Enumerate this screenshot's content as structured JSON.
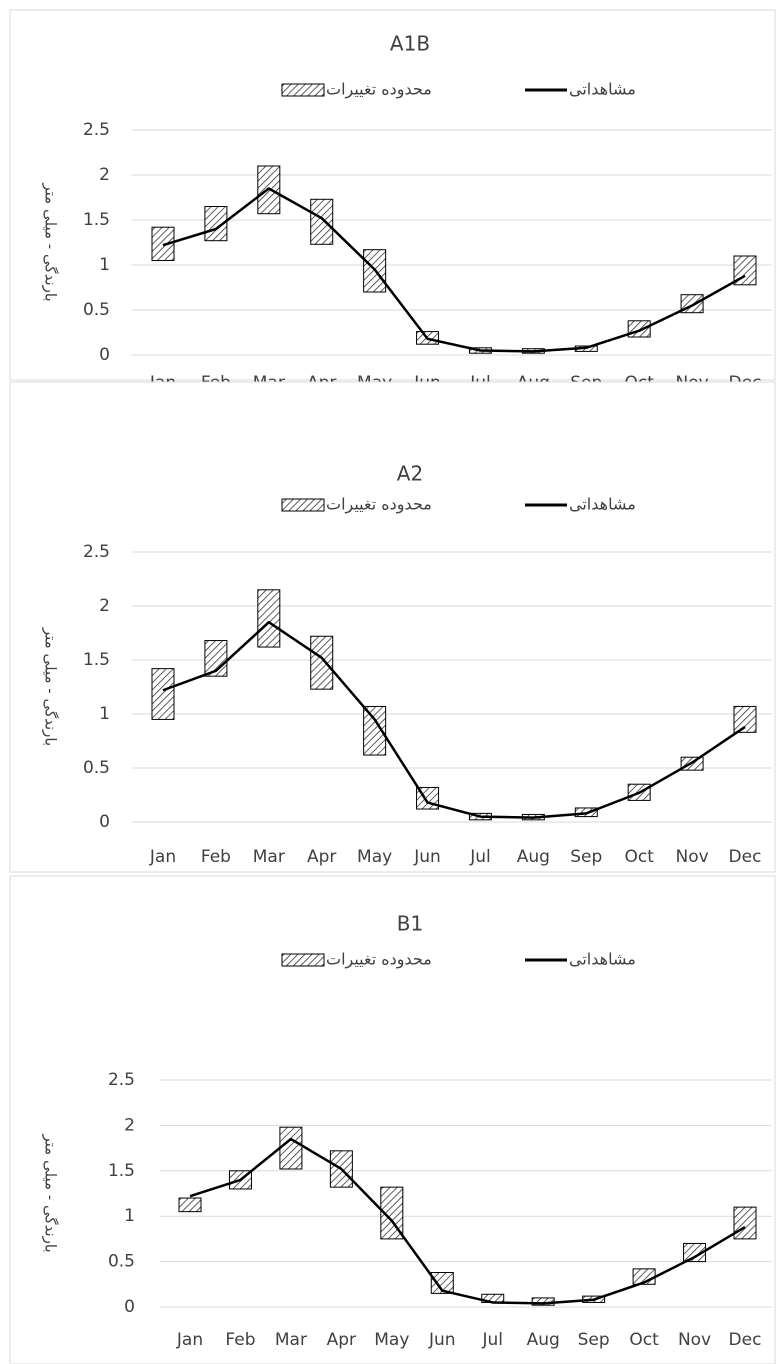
{
  "chart_data": [
    {
      "type": "range-line",
      "title": "A1B",
      "y_axis_label": "بارندگی - میلی متر",
      "categories": [
        "Jan",
        "Feb",
        "Mar",
        "Apr",
        "May",
        "Jun",
        "Jul",
        "Aug",
        "Sep",
        "Oct",
        "Nov",
        "Dec"
      ],
      "ylim": [
        0,
        2.5
      ],
      "yticks": [
        0,
        0.5,
        1,
        1.5,
        2,
        2.5
      ],
      "grid": true,
      "series": [
        {
          "name": "محدوده تغییرات",
          "low": [
            1.05,
            1.27,
            1.57,
            1.23,
            0.7,
            0.12,
            0.02,
            0.02,
            0.04,
            0.2,
            0.47,
            0.78
          ],
          "high": [
            1.42,
            1.65,
            2.1,
            1.73,
            1.17,
            0.26,
            0.08,
            0.07,
            0.1,
            0.38,
            0.67,
            1.1
          ]
        },
        {
          "name": "مشاهداتی",
          "color": "#000000",
          "values": [
            1.22,
            1.4,
            1.85,
            1.52,
            0.95,
            0.18,
            0.05,
            0.04,
            0.08,
            0.27,
            0.55,
            0.88
          ]
        }
      ]
    },
    {
      "type": "range-line",
      "title": "A2",
      "y_axis_label": "بارندگی - میلی متر",
      "categories": [
        "Jan",
        "Feb",
        "Mar",
        "Apr",
        "May",
        "Jun",
        "Jul",
        "Aug",
        "Sep",
        "Oct",
        "Nov",
        "Dec"
      ],
      "ylim": [
        0,
        2.5
      ],
      "yticks": [
        0,
        0.5,
        1,
        1.5,
        2,
        2.5
      ],
      "grid": true,
      "series": [
        {
          "name": "محدوده تغییرات",
          "low": [
            0.95,
            1.35,
            1.62,
            1.23,
            0.62,
            0.12,
            0.02,
            0.02,
            0.05,
            0.2,
            0.48,
            0.83
          ],
          "high": [
            1.42,
            1.68,
            2.15,
            1.72,
            1.07,
            0.32,
            0.08,
            0.07,
            0.13,
            0.35,
            0.6,
            1.07
          ]
        },
        {
          "name": "مشاهداتی",
          "color": "#000000",
          "values": [
            1.22,
            1.4,
            1.85,
            1.52,
            0.95,
            0.18,
            0.05,
            0.04,
            0.08,
            0.27,
            0.55,
            0.88
          ]
        }
      ]
    },
    {
      "type": "range-line",
      "title": "B1",
      "y_axis_label": "بارندگی - میلی متر",
      "categories": [
        "Jan",
        "Feb",
        "Mar",
        "Apr",
        "May",
        "Jun",
        "Jul",
        "Aug",
        "Sep",
        "Oct",
        "Nov",
        "Dec"
      ],
      "ylim": [
        0,
        2.5
      ],
      "yticks": [
        0,
        0.5,
        1,
        1.5,
        2,
        2.5
      ],
      "grid": true,
      "series": [
        {
          "name": "محدوده تغییرات",
          "low": [
            1.05,
            1.3,
            1.52,
            1.32,
            0.75,
            0.15,
            0.05,
            0.02,
            0.05,
            0.25,
            0.5,
            0.75
          ],
          "high": [
            1.2,
            1.5,
            1.98,
            1.72,
            1.32,
            0.38,
            0.14,
            0.1,
            0.12,
            0.42,
            0.7,
            1.1
          ]
        },
        {
          "name": "مشاهداتی",
          "color": "#000000",
          "values": [
            1.22,
            1.4,
            1.85,
            1.52,
            0.95,
            0.18,
            0.05,
            0.04,
            0.08,
            0.27,
            0.55,
            0.88
          ]
        }
      ]
    }
  ]
}
